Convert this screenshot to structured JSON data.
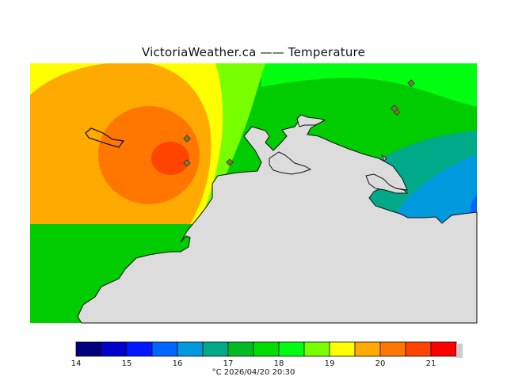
{
  "map": {
    "title": "VictoriaWeather.ca —— Temperature",
    "unit": "°C",
    "timestamp": "2026/04/20 20:30",
    "footer_text": "°C  2026/04/20 20:30"
  },
  "legend": {
    "range": [
      14,
      21
    ],
    "ticks": [
      "14",
      "15",
      "16",
      "17",
      "18",
      "19",
      "20",
      "21"
    ],
    "bins": [
      {
        "from": 14.0,
        "to": 14.5,
        "color": "#00007f"
      },
      {
        "from": 14.5,
        "to": 15.0,
        "color": "#0000cc"
      },
      {
        "from": 15.0,
        "to": 15.5,
        "color": "#0018ff"
      },
      {
        "from": 15.5,
        "to": 16.0,
        "color": "#0066ff"
      },
      {
        "from": 16.0,
        "to": 16.5,
        "color": "#0099dd"
      },
      {
        "from": 16.5,
        "to": 17.0,
        "color": "#00aa88"
      },
      {
        "from": 17.0,
        "to": 17.5,
        "color": "#00bb22"
      },
      {
        "from": 17.5,
        "to": 18.0,
        "color": "#00dd00"
      },
      {
        "from": 18.0,
        "to": 18.5,
        "color": "#00ff11"
      },
      {
        "from": 18.5,
        "to": 19.0,
        "color": "#77ff00"
      },
      {
        "from": 19.0,
        "to": 19.5,
        "color": "#ffff00"
      },
      {
        "from": 19.5,
        "to": 20.0,
        "color": "#ffaa00"
      },
      {
        "from": 20.0,
        "to": 20.5,
        "color": "#ff7700"
      },
      {
        "from": 20.5,
        "to": 21.0,
        "color": "#ff4400"
      },
      {
        "from": 21.0,
        "to": 21.5,
        "color": "#ff0000"
      }
    ]
  },
  "colors": {
    "land": "#dcdcdc",
    "coast": "#111111",
    "station_marker": "#7a7a3a"
  }
}
